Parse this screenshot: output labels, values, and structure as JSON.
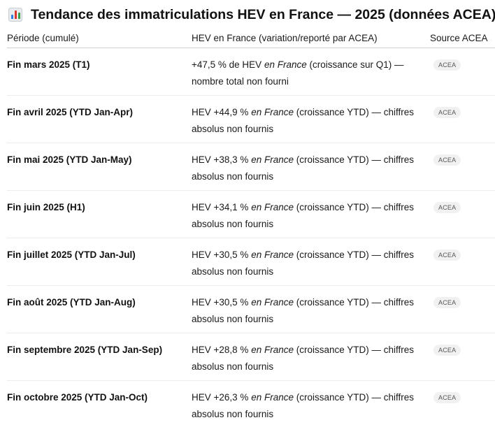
{
  "title": {
    "icon": "bar-chart-icon",
    "text": "Tendance des immatriculations HEV en France — 2025 (données ACEA)"
  },
  "table": {
    "headers": [
      "Période (cumulé)",
      "HEV en France (variation/reporté par ACEA)",
      "Source ACEA"
    ],
    "rows": [
      {
        "period": "Fin mars 2025 (T1)",
        "pre": "+47,5 % de HEV ",
        "italic": "en France",
        "post": " (croissance sur Q1) — nombre total non fourni",
        "source": "ACEA"
      },
      {
        "period": "Fin avril 2025 (YTD Jan-Apr)",
        "pre": "HEV +44,9 % ",
        "italic": "en France",
        "post": " (croissance YTD) — chiffres absolus non fournis",
        "source": "ACEA"
      },
      {
        "period": "Fin mai 2025 (YTD Jan-May)",
        "pre": "HEV +38,3 % ",
        "italic": "en France",
        "post": " (croissance YTD) — chiffres absolus non fournis",
        "source": "ACEA"
      },
      {
        "period": "Fin juin 2025 (H1)",
        "pre": "HEV +34,1 % ",
        "italic": "en France",
        "post": " (croissance YTD) — chiffres absolus non fournis",
        "source": "ACEA"
      },
      {
        "period": "Fin juillet 2025 (YTD Jan-Jul)",
        "pre": "HEV +30,5 % ",
        "italic": "en France",
        "post": " (croissance YTD) — chiffres absolus non fournis",
        "source": "ACEA"
      },
      {
        "period": "Fin août 2025 (YTD Jan-Aug)",
        "pre": "HEV +30,5 % ",
        "italic": "en France",
        "post": " (croissance YTD) — chiffres absolus non fournis",
        "source": "ACEA"
      },
      {
        "period": "Fin septembre 2025 (YTD Jan-Sep)",
        "pre": "HEV +28,8 % ",
        "italic": "en France",
        "post": " (croissance YTD) — chiffres absolus non fournis",
        "source": "ACEA"
      },
      {
        "period": "Fin octobre 2025 (YTD Jan-Oct)",
        "pre": "HEV +26,3 % ",
        "italic": "en France",
        "post": " (croissance YTD) — chiffres absolus non fournis",
        "source": "ACEA"
      }
    ]
  }
}
